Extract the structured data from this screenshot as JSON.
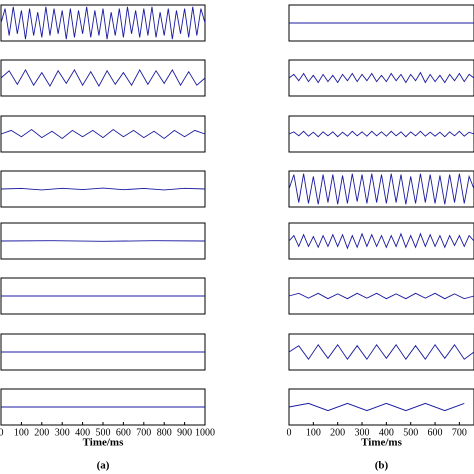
{
  "chart_data": [
    {
      "type": "line",
      "color": "#1a1aa0",
      "xlim": [
        0,
        1000
      ],
      "ylim": [
        -1,
        1
      ],
      "x": [
        0,
        20,
        40,
        60,
        80,
        100,
        120,
        140,
        160,
        180,
        200,
        220,
        240,
        260,
        280,
        300,
        320,
        340,
        360,
        380,
        400,
        420,
        440,
        460,
        480,
        500,
        520,
        540,
        560,
        580,
        600,
        620,
        640,
        660,
        680,
        700,
        720,
        740,
        760,
        780,
        800,
        820,
        840,
        860,
        880,
        900,
        920,
        940,
        960,
        980,
        1000
      ],
      "values": [
        0,
        0.8,
        -0.7,
        0.9,
        -0.6,
        0.7,
        -0.9,
        0.8,
        -0.7,
        0.6,
        -0.8,
        0.9,
        -0.7,
        0.8,
        -0.6,
        0.7,
        -0.9,
        0.8,
        -0.8,
        0.7,
        -0.6,
        0.9,
        -0.8,
        0.7,
        -0.7,
        0.8,
        -0.9,
        0.6,
        -0.7,
        0.8,
        -0.8,
        0.9,
        -0.6,
        0.7,
        -0.8,
        0.8,
        -0.7,
        0.9,
        -0.8,
        0.6,
        -0.7,
        0.8,
        -0.9,
        0.7,
        -0.6,
        0.8,
        -0.8,
        0.9,
        -0.7,
        0.8,
        0
      ]
    },
    {
      "type": "line",
      "color": "#1a1aa0",
      "xlim": [
        0,
        1000
      ],
      "ylim": [
        -1,
        1
      ],
      "x": [
        0,
        40,
        80,
        120,
        160,
        200,
        240,
        280,
        320,
        360,
        400,
        440,
        480,
        520,
        560,
        600,
        640,
        680,
        720,
        760,
        800,
        840,
        880,
        920,
        960,
        1000
      ],
      "values": [
        0,
        0.4,
        -0.35,
        0.45,
        -0.4,
        0.3,
        -0.45,
        0.4,
        -0.3,
        0.45,
        -0.4,
        0.35,
        -0.45,
        0.4,
        -0.35,
        0.3,
        -0.4,
        0.45,
        -0.35,
        0.4,
        -0.3,
        0.45,
        -0.4,
        0.35,
        -0.4,
        0
      ]
    },
    {
      "type": "line",
      "color": "#1a1aa0",
      "xlim": [
        0,
        1000
      ],
      "ylim": [
        -1,
        1
      ],
      "x": [
        0,
        50,
        100,
        150,
        200,
        250,
        300,
        350,
        400,
        450,
        500,
        550,
        600,
        650,
        700,
        750,
        800,
        850,
        900,
        950,
        1000
      ],
      "values": [
        0,
        0.2,
        -0.15,
        0.25,
        -0.2,
        0.15,
        -0.25,
        0.2,
        -0.15,
        0.2,
        -0.2,
        0.25,
        -0.15,
        0.2,
        -0.2,
        0.15,
        -0.25,
        0.2,
        -0.15,
        0.2,
        0
      ]
    },
    {
      "type": "line",
      "color": "#1a1aa0",
      "xlim": [
        0,
        1000
      ],
      "ylim": [
        -1,
        1
      ],
      "x": [
        0,
        100,
        200,
        300,
        400,
        500,
        600,
        700,
        800,
        900,
        1000
      ],
      "values": [
        0,
        0.03,
        -0.05,
        0.04,
        -0.03,
        0.05,
        -0.04,
        0.03,
        -0.05,
        0.04,
        0
      ]
    },
    {
      "type": "line",
      "color": "#1a1aa0",
      "xlim": [
        0,
        1000
      ],
      "ylim": [
        -1,
        1
      ],
      "x": [
        0,
        250,
        500,
        750,
        1000
      ],
      "values": [
        0,
        0.02,
        -0.02,
        0.02,
        0
      ]
    },
    {
      "type": "line",
      "color": "#1a1aa0",
      "xlim": [
        0,
        1000
      ],
      "ylim": [
        -1,
        1
      ],
      "x": [
        0,
        1000
      ],
      "values": [
        0,
        0
      ]
    },
    {
      "type": "line",
      "color": "#1a1aa0",
      "xlim": [
        0,
        1000
      ],
      "ylim": [
        -1,
        1
      ],
      "x": [
        0,
        1000
      ],
      "values": [
        0,
        0
      ]
    },
    {
      "type": "line",
      "color": "#1a1aa0",
      "xlim": [
        0,
        1000
      ],
      "ylim": [
        -1,
        1
      ],
      "x": [
        0,
        1000
      ],
      "values": [
        0,
        0
      ],
      "xticks": [
        0,
        100,
        200,
        300,
        400,
        500,
        600,
        700,
        800,
        900,
        1000
      ],
      "xlabel": "Time/ms",
      "caption": "(a)"
    },
    {
      "type": "line",
      "color": "#1a1aa0",
      "xlim": [
        0,
        760
      ],
      "ylim": [
        -1,
        1
      ],
      "x": [
        0,
        760
      ],
      "values": [
        0,
        0
      ]
    },
    {
      "type": "line",
      "color": "#1a1aa0",
      "xlim": [
        0,
        760
      ],
      "ylim": [
        -1,
        1
      ],
      "x": [
        0,
        20,
        40,
        60,
        80,
        100,
        120,
        140,
        160,
        180,
        200,
        220,
        240,
        260,
        280,
        300,
        320,
        340,
        360,
        380,
        400,
        420,
        440,
        460,
        480,
        500,
        520,
        540,
        560,
        580,
        600,
        620,
        640,
        660,
        680,
        700,
        720,
        740,
        760
      ],
      "values": [
        0,
        0.2,
        -0.15,
        0.25,
        -0.2,
        0.15,
        -0.25,
        0.2,
        -0.2,
        0.15,
        -0.25,
        0.2,
        -0.15,
        0.25,
        -0.2,
        0.2,
        -0.15,
        0.25,
        -0.2,
        0.15,
        -0.2,
        0.25,
        -0.15,
        0.2,
        -0.25,
        0.2,
        -0.15,
        0.3,
        -0.25,
        0.2,
        -0.2,
        0.15,
        -0.25,
        0.2,
        -0.15,
        0.25,
        -0.2,
        0.2,
        0
      ]
    },
    {
      "type": "line",
      "color": "#1a1aa0",
      "xlim": [
        0,
        760
      ],
      "ylim": [
        -1,
        1
      ],
      "x": [
        0,
        20,
        40,
        60,
        80,
        100,
        120,
        140,
        160,
        180,
        200,
        220,
        240,
        260,
        280,
        300,
        320,
        340,
        360,
        380,
        400,
        420,
        440,
        460,
        480,
        500,
        520,
        540,
        560,
        580,
        600,
        620,
        640,
        660,
        680,
        700,
        720,
        740,
        760
      ],
      "values": [
        0,
        0.12,
        -0.1,
        0.15,
        -0.12,
        0.1,
        -0.15,
        0.12,
        -0.1,
        0.12,
        -0.15,
        0.1,
        -0.12,
        0.15,
        -0.1,
        0.12,
        -0.12,
        0.15,
        -0.1,
        0.12,
        -0.12,
        0.15,
        -0.1,
        0.12,
        -0.15,
        0.12,
        -0.1,
        0.15,
        -0.12,
        0.1,
        -0.12,
        0.1,
        -0.15,
        0.12,
        -0.1,
        0.15,
        -0.12,
        0.1,
        0
      ]
    },
    {
      "type": "line",
      "color": "#1a1aa0",
      "xlim": [
        0,
        760
      ],
      "ylim": [
        -1,
        1
      ],
      "x": [
        0,
        20,
        40,
        60,
        80,
        100,
        120,
        140,
        160,
        180,
        200,
        220,
        240,
        260,
        280,
        300,
        320,
        340,
        360,
        380,
        400,
        420,
        440,
        460,
        480,
        500,
        520,
        540,
        560,
        580,
        600,
        620,
        640,
        660,
        680,
        700,
        720,
        740,
        760
      ],
      "values": [
        0,
        0.8,
        -0.75,
        0.85,
        -0.8,
        0.7,
        -0.85,
        0.8,
        -0.75,
        0.8,
        -0.85,
        0.75,
        -0.8,
        0.85,
        -0.7,
        0.8,
        -0.8,
        0.85,
        -0.75,
        0.8,
        -0.8,
        0.85,
        -0.75,
        0.8,
        -0.85,
        0.7,
        -0.8,
        0.85,
        -0.75,
        0.8,
        -0.8,
        0.75,
        -0.85,
        0.8,
        -0.75,
        0.85,
        -0.8,
        0.7,
        0
      ]
    },
    {
      "type": "line",
      "color": "#1a1aa0",
      "xlim": [
        0,
        760
      ],
      "ylim": [
        -1,
        1
      ],
      "x": [
        0,
        20,
        40,
        60,
        80,
        100,
        120,
        140,
        160,
        180,
        200,
        220,
        240,
        260,
        280,
        300,
        320,
        340,
        360,
        380,
        400,
        420,
        440,
        460,
        480,
        500,
        520,
        540,
        560,
        580,
        600,
        620,
        640,
        660,
        680,
        700,
        720,
        740,
        760
      ],
      "values": [
        0,
        0.3,
        -0.3,
        0.35,
        -0.3,
        0.25,
        -0.35,
        0.3,
        -0.3,
        0.35,
        -0.3,
        0.35,
        -0.4,
        0.3,
        -0.35,
        0.4,
        -0.3,
        0.35,
        -0.3,
        0.3,
        -0.35,
        0.3,
        -0.3,
        0.4,
        -0.35,
        0.3,
        -0.35,
        0.4,
        -0.3,
        0.35,
        -0.3,
        0.3,
        -0.35,
        0.3,
        -0.25,
        0.3,
        -0.3,
        0.3,
        0
      ]
    },
    {
      "type": "line",
      "color": "#1a1aa0",
      "xlim": [
        0,
        760
      ],
      "ylim": [
        -1,
        1
      ],
      "x": [
        0,
        40,
        80,
        120,
        160,
        200,
        240,
        280,
        320,
        360,
        400,
        440,
        480,
        520,
        560,
        600,
        640,
        680,
        720,
        760
      ],
      "values": [
        0,
        0.15,
        -0.12,
        0.15,
        -0.15,
        0.12,
        -0.15,
        0.15,
        -0.12,
        0.15,
        -0.15,
        0.12,
        -0.15,
        0.15,
        -0.12,
        0.15,
        -0.15,
        0.12,
        -0.15,
        0
      ]
    },
    {
      "type": "line",
      "color": "#1a1aa0",
      "xlim": [
        0,
        760
      ],
      "ylim": [
        -1,
        1
      ],
      "x": [
        0,
        40,
        80,
        120,
        160,
        200,
        240,
        280,
        320,
        360,
        400,
        440,
        480,
        520,
        560,
        600,
        640,
        680,
        720,
        760
      ],
      "values": [
        0,
        0.35,
        -0.4,
        0.4,
        -0.35,
        0.4,
        -0.4,
        0.35,
        -0.4,
        0.4,
        -0.35,
        0.4,
        -0.4,
        0.35,
        -0.4,
        0.4,
        -0.35,
        0.4,
        -0.4,
        0
      ]
    },
    {
      "type": "line",
      "color": "#1a1aa0",
      "xlim": [
        0,
        760
      ],
      "ylim": [
        -1,
        1
      ],
      "x": [
        0,
        80,
        160,
        240,
        320,
        400,
        480,
        560,
        640,
        720
      ],
      "values": [
        0,
        0.2,
        -0.2,
        0.2,
        -0.2,
        0.2,
        -0.2,
        0.2,
        -0.2,
        0.2
      ],
      "xticks": [
        0,
        100,
        200,
        300,
        400,
        500,
        600,
        700
      ],
      "xlabel": "Time/ms",
      "caption": "(b)"
    }
  ]
}
